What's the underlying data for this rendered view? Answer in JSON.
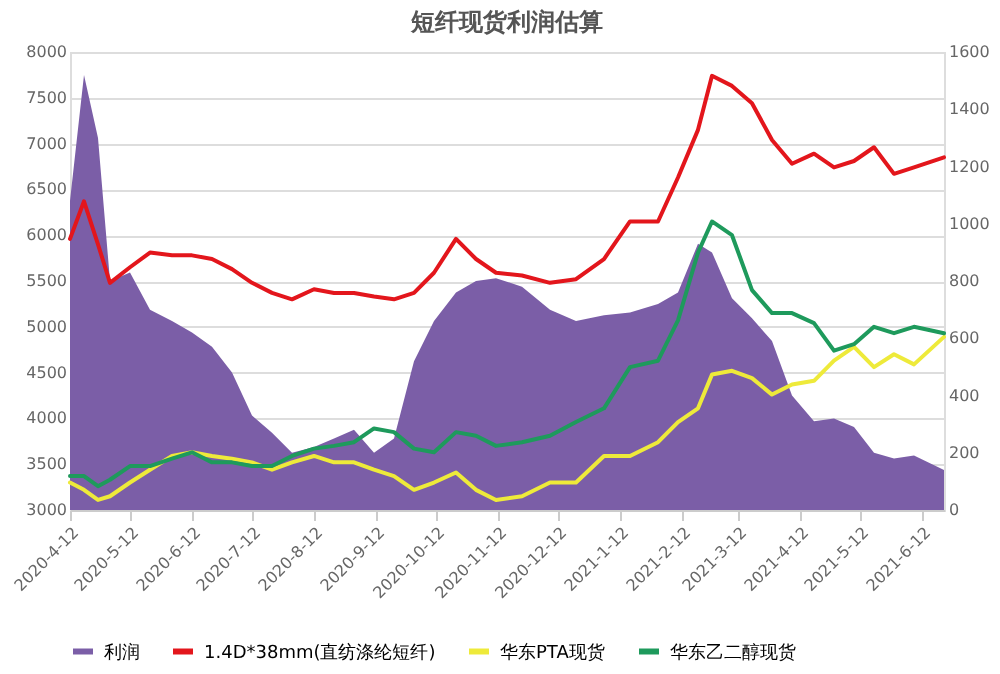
{
  "chart_data": {
    "type": "line",
    "title": "短纤现货利润估算",
    "x": [
      "2020-04-12",
      "2020-04-19",
      "2020-04-26",
      "2020-05-02",
      "2020-05-12",
      "2020-05-22",
      "2020-06-02",
      "2020-06-12",
      "2020-06-22",
      "2020-07-02",
      "2020-07-12",
      "2020-07-22",
      "2020-08-01",
      "2020-08-12",
      "2020-08-22",
      "2020-09-01",
      "2020-09-11",
      "2020-09-21",
      "2020-10-01",
      "2020-10-11",
      "2020-10-22",
      "2020-11-01",
      "2020-11-11",
      "2020-11-24",
      "2020-12-08",
      "2020-12-21",
      "2021-01-04",
      "2021-01-17",
      "2021-01-31",
      "2021-02-10",
      "2021-02-20",
      "2021-02-27",
      "2021-03-09",
      "2021-03-19",
      "2021-03-29",
      "2021-04-08",
      "2021-04-19",
      "2021-04-29",
      "2021-05-09",
      "2021-05-19",
      "2021-05-29",
      "2021-06-08",
      "2021-06-23"
    ],
    "series": [
      {
        "name": "利润",
        "type": "area",
        "axis": "y2",
        "color": "#7b5ea7",
        "values": [
          1080,
          1520,
          1300,
          800,
          830,
          700,
          660,
          620,
          570,
          480,
          330,
          270,
          200,
          220,
          250,
          280,
          200,
          250,
          520,
          660,
          760,
          800,
          810,
          780,
          700,
          660,
          680,
          690,
          720,
          760,
          930,
          900,
          740,
          670,
          590,
          400,
          310,
          320,
          290,
          200,
          180,
          190,
          140
        ]
      },
      {
        "name": "1.4D*38mm(直纺涤纶短纤)",
        "color": "#e3161c",
        "values": [
          5960,
          6370,
          5900,
          5480,
          5650,
          5810,
          5780,
          5780,
          5740,
          5630,
          5480,
          5370,
          5300,
          5410,
          5370,
          5370,
          5330,
          5300,
          5370,
          5590,
          5960,
          5740,
          5590,
          5560,
          5480,
          5520,
          5740,
          6150,
          6150,
          6630,
          7150,
          7740,
          7630,
          7440,
          7040,
          6780,
          6890,
          6740,
          6810,
          6960,
          6670,
          6740,
          6850
        ]
      },
      {
        "name": "华东PTA现货",
        "color": "#eeea3a",
        "values": [
          3300,
          3220,
          3110,
          3150,
          3300,
          3440,
          3590,
          3630,
          3590,
          3560,
          3520,
          3440,
          3520,
          3590,
          3520,
          3520,
          3440,
          3370,
          3220,
          3300,
          3410,
          3220,
          3110,
          3150,
          3300,
          3300,
          3590,
          3590,
          3740,
          3960,
          4110,
          4480,
          4520,
          4440,
          4260,
          4370,
          4410,
          4630,
          4780,
          4560,
          4700,
          4590,
          4890
        ]
      },
      {
        "name": "华东乙二醇现货",
        "color": "#1e9a5c",
        "values": [
          3370,
          3370,
          3260,
          3330,
          3480,
          3480,
          3560,
          3630,
          3520,
          3520,
          3480,
          3480,
          3590,
          3670,
          3700,
          3740,
          3890,
          3850,
          3670,
          3630,
          3850,
          3810,
          3700,
          3740,
          3810,
          3960,
          4110,
          4560,
          4630,
          5070,
          5810,
          6150,
          6000,
          5400,
          5150,
          5150,
          5040,
          4740,
          4810,
          5000,
          4930,
          5000,
          4930
        ]
      }
    ],
    "xlim": [
      "2020-04-12",
      "2021-06-23"
    ],
    "xticks": [
      {
        "value": "2020-04-12",
        "label": "2020-4-12"
      },
      {
        "value": "2020-05-12",
        "label": "2020-5-12"
      },
      {
        "value": "2020-06-12",
        "label": "2020-6-12"
      },
      {
        "value": "2020-07-12",
        "label": "2020-7-12"
      },
      {
        "value": "2020-08-12",
        "label": "2020-8-12"
      },
      {
        "value": "2020-09-12",
        "label": "2020-9-12"
      },
      {
        "value": "2020-10-12",
        "label": "2020-10-12"
      },
      {
        "value": "2020-11-12",
        "label": "2020-11-12"
      },
      {
        "value": "2020-12-12",
        "label": "2020-12-12"
      },
      {
        "value": "2021-01-12",
        "label": "2021-1-12"
      },
      {
        "value": "2021-02-12",
        "label": "2021-2-12"
      },
      {
        "value": "2021-03-12",
        "label": "2021-3-12"
      },
      {
        "value": "2021-04-12",
        "label": "2021-4-12"
      },
      {
        "value": "2021-05-12",
        "label": "2021-5-12"
      },
      {
        "value": "2021-06-12",
        "label": "2021-6-12"
      }
    ],
    "ylim": [
      3000,
      8000
    ],
    "yticks": [
      3000,
      3500,
      4000,
      4500,
      5000,
      5500,
      6000,
      6500,
      7000,
      7500,
      8000
    ],
    "y2lim": [
      0,
      1600
    ],
    "y2ticks": [
      0,
      200,
      400,
      600,
      800,
      1000,
      1200,
      1400,
      1600
    ],
    "grid": "y",
    "legend": "bottom"
  }
}
